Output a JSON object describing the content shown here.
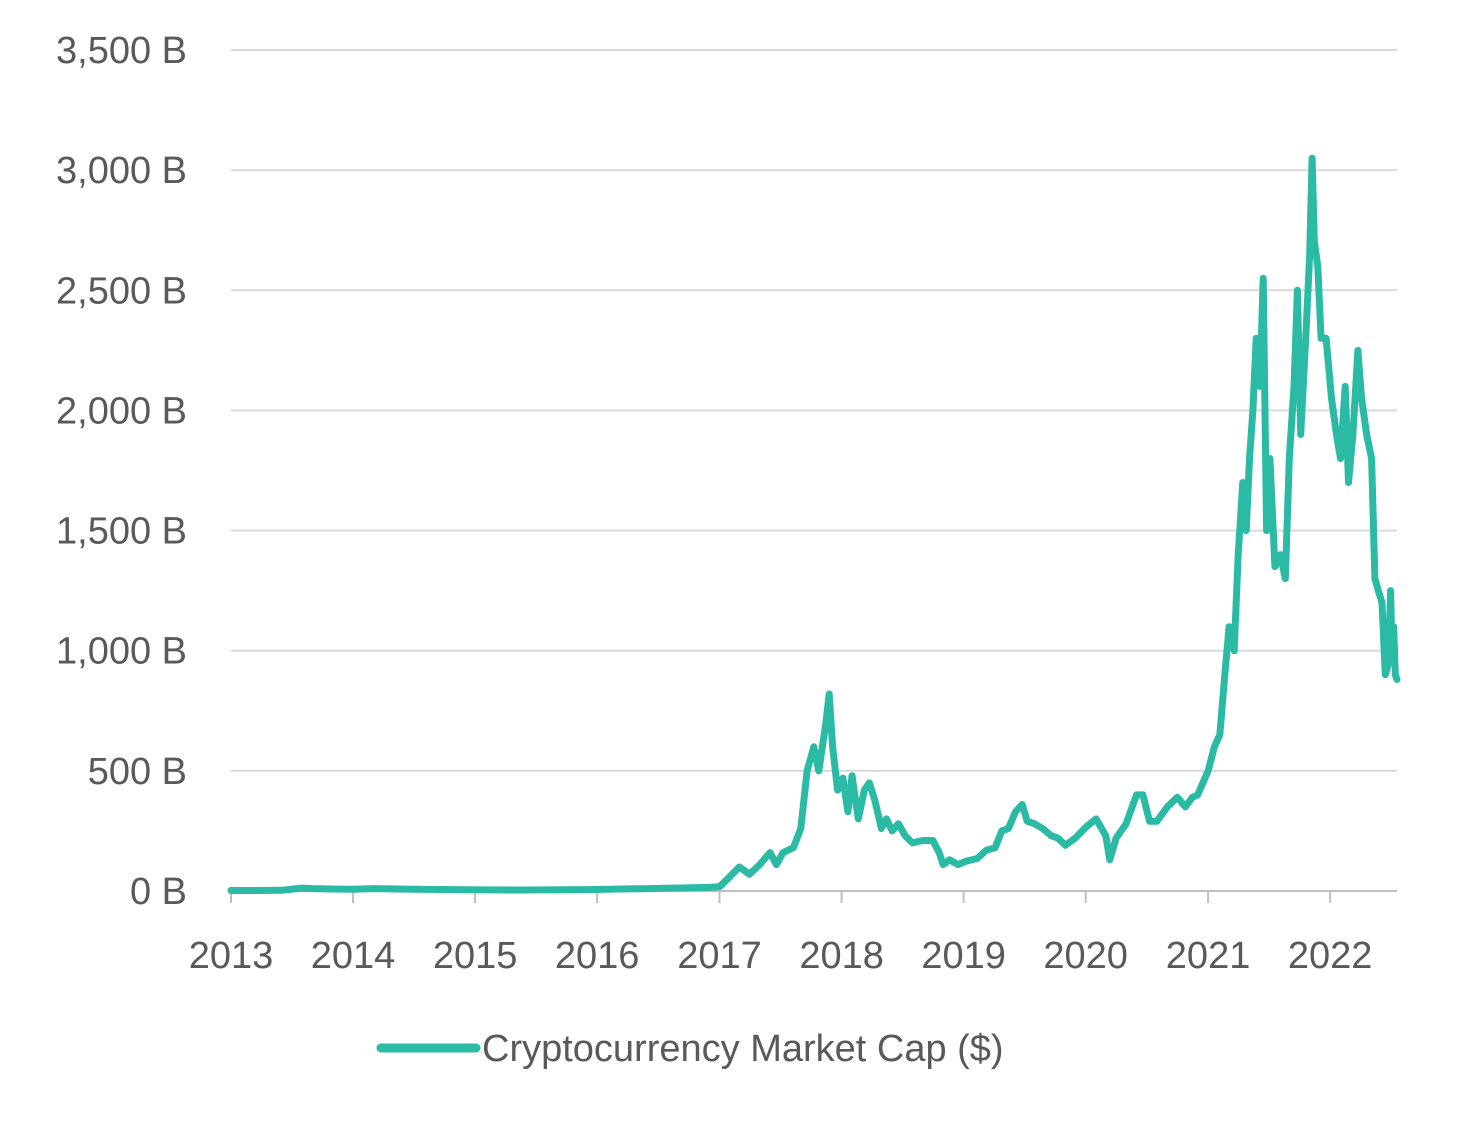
{
  "chart_data": {
    "type": "line",
    "title": "",
    "xlabel": "",
    "ylabel": "",
    "ylim": [
      0,
      3500
    ],
    "y_unit": "B",
    "grid": true,
    "legend_position": "bottom",
    "y_ticks": [
      "0 B",
      "500 B",
      "1,000 B",
      "1,500 B",
      "2,000 B",
      "2,500 B",
      "3,000 B",
      "3,500 B"
    ],
    "y_tick_values": [
      0,
      500,
      1000,
      1500,
      2000,
      2500,
      3000,
      3500
    ],
    "x_ticks": [
      "2013",
      "2014",
      "2015",
      "2016",
      "2017",
      "2018",
      "2019",
      "2020",
      "2021",
      "2022"
    ],
    "x_tick_values": [
      "2013-01-01",
      "2014-01-01",
      "2015-01-01",
      "2016-01-01",
      "2017-01-01",
      "2018-01-01",
      "2019-01-01",
      "2020-01-01",
      "2021-01-01",
      "2022-01-01"
    ],
    "xlim": [
      "2013-01-01",
      "2022-07-20"
    ],
    "series": [
      {
        "name": "Cryptocurrency Market Cap ($)",
        "color": "#2bbba4",
        "points": [
          [
            "2013-01-01",
            2
          ],
          [
            "2013-04-01",
            2
          ],
          [
            "2013-06-01",
            3
          ],
          [
            "2013-08-01",
            12
          ],
          [
            "2013-09-01",
            10
          ],
          [
            "2013-11-15",
            8
          ],
          [
            "2014-01-01",
            7
          ],
          [
            "2014-03-01",
            10
          ],
          [
            "2014-06-01",
            8
          ],
          [
            "2014-12-01",
            5
          ],
          [
            "2015-06-01",
            4
          ],
          [
            "2015-12-01",
            6
          ],
          [
            "2016-06-01",
            10
          ],
          [
            "2016-12-01",
            15
          ],
          [
            "2017-01-01",
            18
          ],
          [
            "2017-02-01",
            60
          ],
          [
            "2017-03-01",
            100
          ],
          [
            "2017-04-01",
            70
          ],
          [
            "2017-05-01",
            110
          ],
          [
            "2017-06-01",
            160
          ],
          [
            "2017-06-20",
            110
          ],
          [
            "2017-07-10",
            160
          ],
          [
            "2017-08-10",
            180
          ],
          [
            "2017-09-01",
            260
          ],
          [
            "2017-09-20",
            500
          ],
          [
            "2017-10-10",
            600
          ],
          [
            "2017-10-25",
            500
          ],
          [
            "2017-11-15",
            700
          ],
          [
            "2017-11-25",
            820
          ],
          [
            "2017-12-05",
            600
          ],
          [
            "2017-12-20",
            420
          ],
          [
            "2018-01-05",
            470
          ],
          [
            "2018-01-20",
            330
          ],
          [
            "2018-02-01",
            480
          ],
          [
            "2018-02-20",
            300
          ],
          [
            "2018-03-10",
            420
          ],
          [
            "2018-03-25",
            450
          ],
          [
            "2018-04-10",
            380
          ],
          [
            "2018-04-30",
            260
          ],
          [
            "2018-05-15",
            300
          ],
          [
            "2018-06-01",
            250
          ],
          [
            "2018-06-20",
            280
          ],
          [
            "2018-07-10",
            230
          ],
          [
            "2018-08-01",
            200
          ],
          [
            "2018-09-01",
            210
          ],
          [
            "2018-10-01",
            210
          ],
          [
            "2018-10-20",
            160
          ],
          [
            "2018-11-01",
            110
          ],
          [
            "2018-11-20",
            130
          ],
          [
            "2018-12-15",
            110
          ],
          [
            "2019-01-10",
            125
          ],
          [
            "2019-02-10",
            135
          ],
          [
            "2019-03-10",
            170
          ],
          [
            "2019-04-05",
            180
          ],
          [
            "2019-04-25",
            250
          ],
          [
            "2019-05-15",
            260
          ],
          [
            "2019-06-05",
            330
          ],
          [
            "2019-06-25",
            360
          ],
          [
            "2019-07-10",
            290
          ],
          [
            "2019-08-01",
            280
          ],
          [
            "2019-08-25",
            260
          ],
          [
            "2019-09-20",
            230
          ],
          [
            "2019-10-10",
            220
          ],
          [
            "2019-11-01",
            190
          ],
          [
            "2019-12-01",
            220
          ],
          [
            "2020-01-05",
            270
          ],
          [
            "2020-02-01",
            300
          ],
          [
            "2020-03-01",
            230
          ],
          [
            "2020-03-13",
            130
          ],
          [
            "2020-04-01",
            220
          ],
          [
            "2020-05-01",
            280
          ],
          [
            "2020-06-01",
            400
          ],
          [
            "2020-06-20",
            400
          ],
          [
            "2020-07-10",
            290
          ],
          [
            "2020-08-01",
            290
          ],
          [
            "2020-09-01",
            350
          ],
          [
            "2020-10-01",
            390
          ],
          [
            "2020-10-25",
            350
          ],
          [
            "2020-11-15",
            390
          ],
          [
            "2020-12-01",
            400
          ],
          [
            "2021-01-01",
            500
          ],
          [
            "2021-01-20",
            600
          ],
          [
            "2021-02-05",
            650
          ],
          [
            "2021-02-20",
            900
          ],
          [
            "2021-03-05",
            1100
          ],
          [
            "2021-03-20",
            1000
          ],
          [
            "2021-04-01",
            1400
          ],
          [
            "2021-04-15",
            1700
          ],
          [
            "2021-04-25",
            1500
          ],
          [
            "2021-05-05",
            1800
          ],
          [
            "2021-05-15",
            2000
          ],
          [
            "2021-05-25",
            2300
          ],
          [
            "2021-06-05",
            2100
          ],
          [
            "2021-06-15",
            2550
          ],
          [
            "2021-06-25",
            1500
          ],
          [
            "2021-07-05",
            1800
          ],
          [
            "2021-07-20",
            1350
          ],
          [
            "2021-08-05",
            1400
          ],
          [
            "2021-08-20",
            1300
          ],
          [
            "2021-09-01",
            1800
          ],
          [
            "2021-09-15",
            2100
          ],
          [
            "2021-09-25",
            2500
          ],
          [
            "2021-10-05",
            1900
          ],
          [
            "2021-10-20",
            2300
          ],
          [
            "2021-11-01",
            2650
          ],
          [
            "2021-11-08",
            3050
          ],
          [
            "2021-11-15",
            2700
          ],
          [
            "2021-11-25",
            2600
          ],
          [
            "2021-12-05",
            2300
          ],
          [
            "2021-12-20",
            2300
          ],
          [
            "2022-01-05",
            2050
          ],
          [
            "2022-01-20",
            1900
          ],
          [
            "2022-02-01",
            1800
          ],
          [
            "2022-02-15",
            2100
          ],
          [
            "2022-02-25",
            1700
          ],
          [
            "2022-03-10",
            1900
          ],
          [
            "2022-03-25",
            2250
          ],
          [
            "2022-04-05",
            2050
          ],
          [
            "2022-04-20",
            1900
          ],
          [
            "2022-05-05",
            1800
          ],
          [
            "2022-05-15",
            1300
          ],
          [
            "2022-05-25",
            1250
          ],
          [
            "2022-06-05",
            1200
          ],
          [
            "2022-06-15",
            900
          ],
          [
            "2022-06-25",
            950
          ],
          [
            "2022-07-01",
            1250
          ],
          [
            "2022-07-05",
            1000
          ],
          [
            "2022-07-10",
            1100
          ],
          [
            "2022-07-15",
            900
          ],
          [
            "2022-07-20",
            880
          ]
        ]
      }
    ]
  }
}
